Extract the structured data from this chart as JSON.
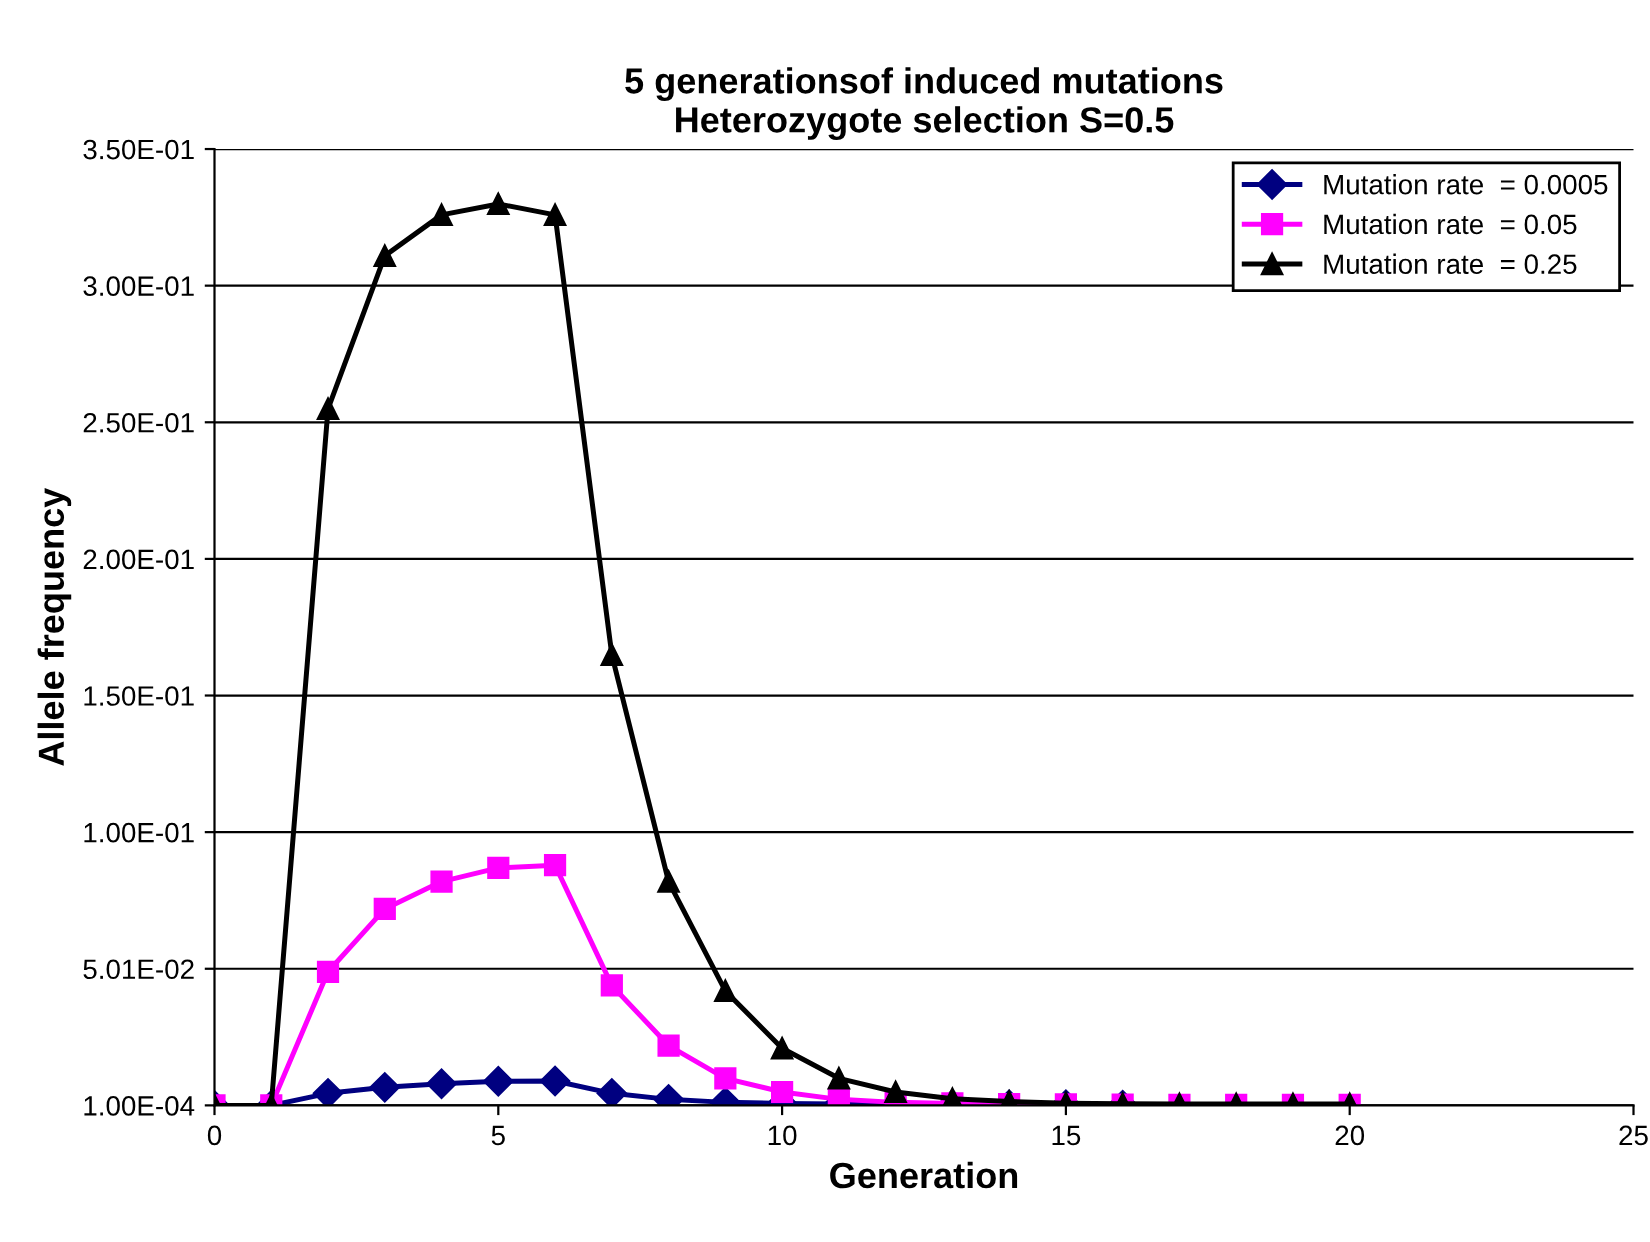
{
  "chart_data": {
    "type": "line",
    "title": "5 generationsof induced mutations\nHeterozygote selection S=0.5",
    "xlabel": "Generation",
    "ylabel": "Allele frequency",
    "x": [
      0,
      1,
      2,
      3,
      4,
      5,
      6,
      7,
      8,
      9,
      10,
      11,
      12,
      13,
      14,
      15,
      16,
      17,
      18,
      19,
      20
    ],
    "series": [
      {
        "name": "Mutation rate  = 0.0005",
        "color": "#000080",
        "marker": "diamond",
        "values": [
          0.0001,
          0.0001,
          0.0045,
          0.0067,
          0.008,
          0.0089,
          0.009,
          0.0045,
          0.0023,
          0.0012,
          0.0008,
          0.0006,
          0.0005,
          0.0004,
          0.0003,
          0.0003,
          0.0002,
          null,
          null,
          null,
          null
        ]
      },
      {
        "name": "Mutation rate  = 0.05",
        "color": "#ff00ff",
        "marker": "square",
        "values": [
          0.0001,
          0.0001,
          0.049,
          0.072,
          0.082,
          0.087,
          0.088,
          0.044,
          0.022,
          0.01,
          0.005,
          0.0023,
          0.0012,
          0.0008,
          0.0006,
          0.0005,
          0.0004,
          0.0003,
          0.0003,
          0.0003,
          0.0003
        ]
      },
      {
        "name": "Mutation rate  = 0.25",
        "color": "#000000",
        "marker": "triangle",
        "values": [
          0.0001,
          0.0001,
          0.255,
          0.311,
          0.326,
          0.33,
          0.326,
          0.165,
          0.082,
          0.042,
          0.021,
          0.01,
          0.005,
          0.0025,
          0.0015,
          0.0009,
          0.0007,
          0.0006,
          0.0006,
          0.0006,
          0.0006
        ]
      }
    ],
    "xlim": [
      0,
      25
    ],
    "xticks": [
      0,
      5,
      10,
      15,
      20,
      25
    ],
    "ylim": [
      0.0001,
      0.3501
    ],
    "yticks": [
      {
        "value": 0.0001,
        "label": "1.00E-04"
      },
      {
        "value": 0.0501,
        "label": "5.01E-02"
      },
      {
        "value": 0.1001,
        "label": "1.00E-01"
      },
      {
        "value": 0.1501,
        "label": "1.50E-01"
      },
      {
        "value": 0.2001,
        "label": "2.00E-01"
      },
      {
        "value": 0.2501,
        "label": "2.50E-01"
      },
      {
        "value": 0.3001,
        "label": "3.00E-01"
      },
      {
        "value": 0.3501,
        "label": "3.50E-01"
      }
    ],
    "grid": "y",
    "legend": "top right"
  }
}
